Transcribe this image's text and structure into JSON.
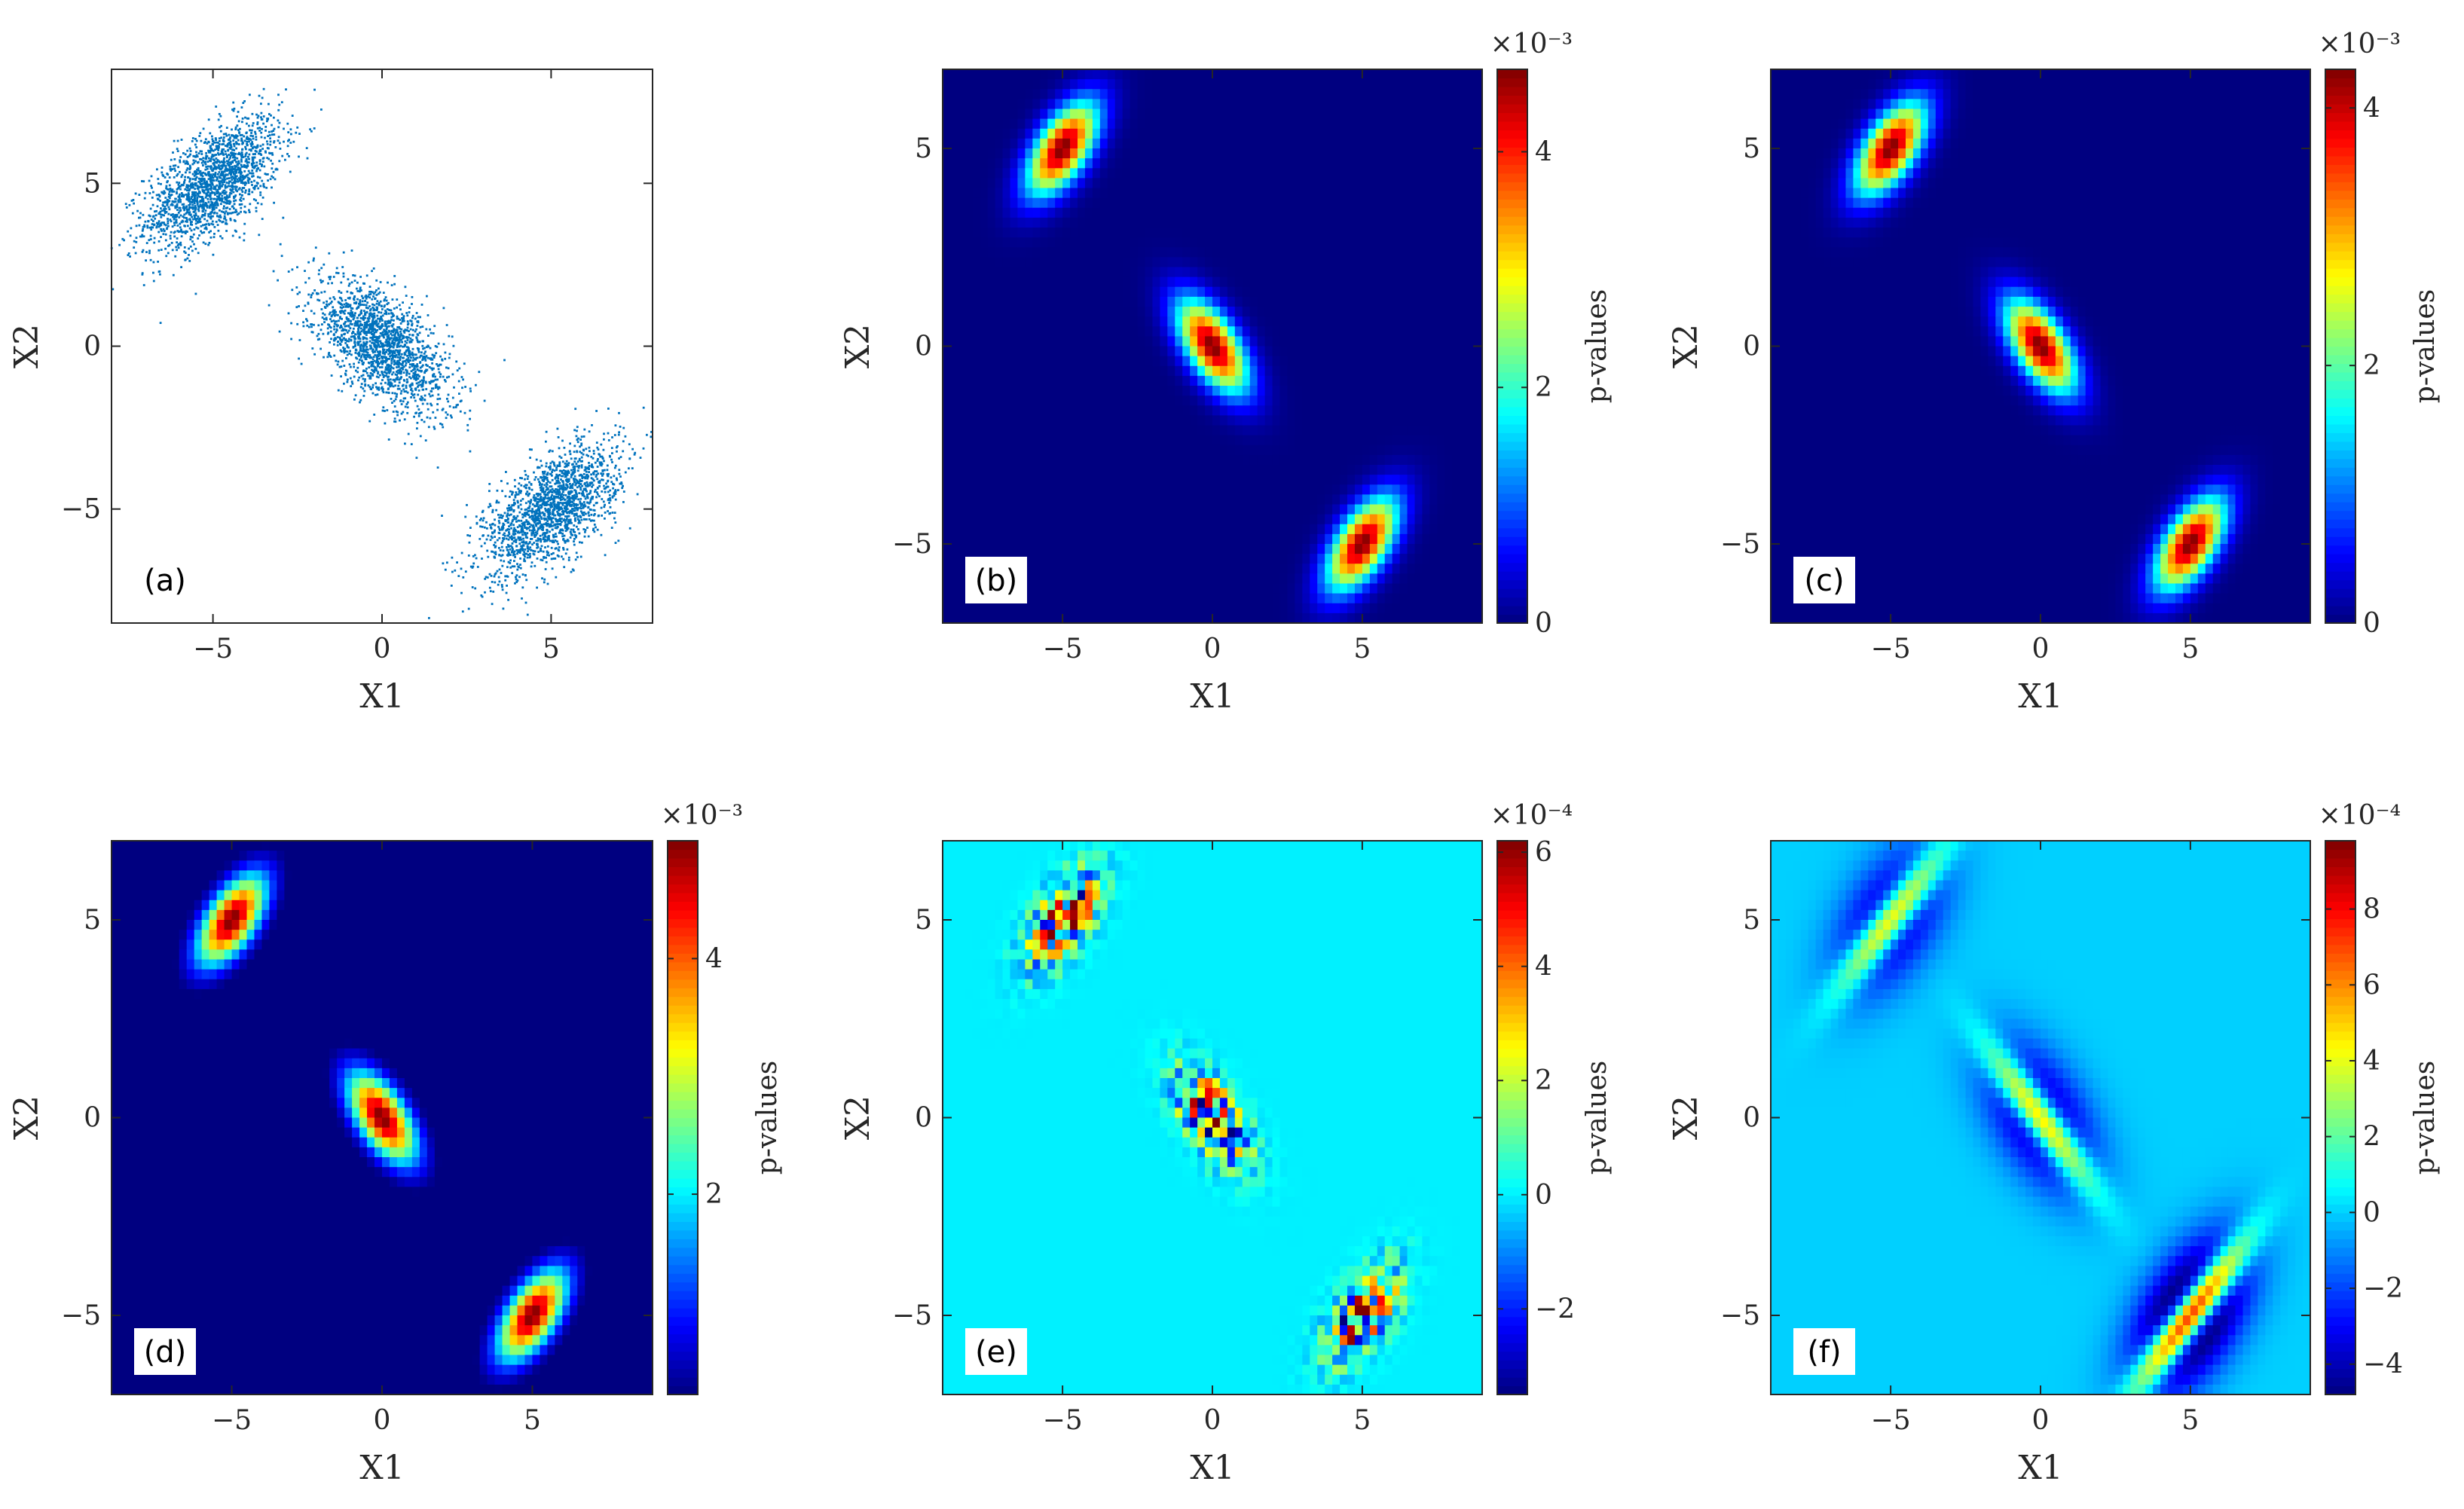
{
  "colors": {
    "scatter": "#0072BD",
    "axis": "#262626"
  },
  "chart_data": [
    {
      "panel": "(a)",
      "type": "scatter",
      "xlabel": "X1",
      "ylabel": "X2",
      "xlim": [
        -8,
        8
      ],
      "ylim": [
        -8.5,
        8.5
      ],
      "xticks": [
        -5,
        0,
        5
      ],
      "yticks": [
        -5,
        0,
        5
      ],
      "clusters": [
        {
          "center": [
            -5,
            5
          ],
          "correlation": 0.6
        },
        {
          "center": [
            0,
            0
          ],
          "correlation": -0.6
        },
        {
          "center": [
            5,
            -5
          ],
          "correlation": 0.6
        }
      ],
      "points_per_cluster": 1800
    },
    {
      "panel": "(b)",
      "type": "heatmap",
      "xlabel": "X1",
      "ylabel": "X2",
      "colorbar_label": "p-values",
      "colorbar_exponent": "×10⁻³",
      "xlim": [
        -9,
        9
      ],
      "ylim": [
        -7,
        7
      ],
      "xticks": [
        -5,
        0,
        5
      ],
      "yticks": [
        -5,
        0,
        5
      ],
      "clim": [
        0,
        4.7
      ],
      "cbar_ticks": [
        0,
        2,
        4
      ],
      "field": "density"
    },
    {
      "panel": "(c)",
      "type": "heatmap",
      "xlabel": "X1",
      "ylabel": "X2",
      "colorbar_label": "p-values",
      "colorbar_exponent": "×10⁻³",
      "xlim": [
        -9,
        9
      ],
      "ylim": [
        -7,
        7
      ],
      "xticks": [
        -5,
        0,
        5
      ],
      "yticks": [
        -5,
        0,
        5
      ],
      "clim": [
        0,
        4.3
      ],
      "cbar_ticks": [
        0,
        2,
        4
      ],
      "field": "density"
    },
    {
      "panel": "(d)",
      "type": "heatmap",
      "xlabel": "X1",
      "ylabel": "X2",
      "colorbar_label": "p-values",
      "colorbar_exponent": "×10⁻³",
      "xlim": [
        -9,
        9
      ],
      "ylim": [
        -7,
        7
      ],
      "xticks": [
        -5,
        0,
        5
      ],
      "yticks": [
        -5,
        0,
        5
      ],
      "clim": [
        0.3,
        5.0
      ],
      "cbar_ticks": [
        2,
        4
      ],
      "field": "density"
    },
    {
      "panel": "(e)",
      "type": "heatmap",
      "xlabel": "X1",
      "ylabel": "X2",
      "colorbar_label": "p-values",
      "colorbar_exponent": "×10⁻⁴",
      "xlim": [
        -9,
        9
      ],
      "ylim": [
        -7,
        7
      ],
      "xticks": [
        -5,
        0,
        5
      ],
      "yticks": [
        -5,
        0,
        5
      ],
      "clim": [
        -3.5,
        6.2
      ],
      "cbar_ticks": [
        -2,
        0,
        2,
        4,
        6
      ],
      "field": "noise"
    },
    {
      "panel": "(f)",
      "type": "heatmap",
      "xlabel": "X1",
      "ylabel": "X2",
      "colorbar_label": "p-values",
      "colorbar_exponent": "×10⁻⁴",
      "xlim": [
        -9,
        9
      ],
      "ylim": [
        -7,
        7
      ],
      "xticks": [
        -5,
        0,
        5
      ],
      "yticks": [
        -5,
        0,
        5
      ],
      "clim": [
        -4.8,
        9.8
      ],
      "cbar_ticks": [
        -4,
        -2,
        0,
        2,
        4,
        6,
        8
      ],
      "field": "ridge"
    }
  ]
}
